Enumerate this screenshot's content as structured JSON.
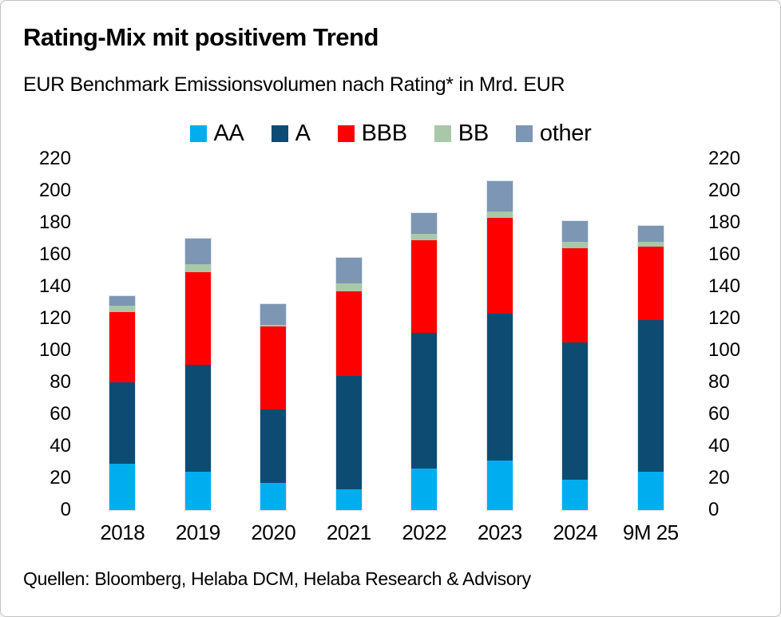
{
  "header": {
    "title": "Rating-Mix mit positivem Trend",
    "subtitle": "EUR Benchmark Emissionsvolumen nach Rating* in Mrd. EUR"
  },
  "footer": {
    "sources": "Quellen: Bloomberg, Helaba DCM, Helaba Research & Advisory"
  },
  "chart_data": {
    "type": "bar",
    "stacked": true,
    "title": "Rating-Mix mit positivem Trend",
    "subtitle": "EUR Benchmark Emissionsvolumen nach Rating* in Mrd. EUR",
    "unit": "Mrd. EUR",
    "categories": [
      "2018",
      "2019",
      "2020",
      "2021",
      "2022",
      "2023",
      "2024",
      "9M 25"
    ],
    "series": [
      {
        "name": "AA",
        "color": "#00AEEF",
        "values": [
          29,
          24,
          17,
          13,
          26,
          31,
          19,
          24
        ]
      },
      {
        "name": "A",
        "color": "#0D4B73",
        "values": [
          51,
          67,
          46,
          71,
          85,
          92,
          86,
          95
        ]
      },
      {
        "name": "BBB",
        "color": "#FE0000",
        "values": [
          44,
          58,
          52,
          53,
          58,
          60,
          59,
          46
        ]
      },
      {
        "name": "BB",
        "color": "#A8C8A8",
        "values": [
          4,
          5,
          1,
          5,
          4,
          4,
          4,
          3
        ]
      },
      {
        "name": "other",
        "color": "#7C96B4",
        "values": [
          6,
          16,
          13,
          16,
          13,
          19,
          13,
          10
        ]
      }
    ],
    "totals": [
      134,
      170,
      129,
      158,
      186,
      206,
      181,
      178
    ],
    "y_axis": {
      "min": 0,
      "max": 220,
      "step": 20,
      "ticks": [
        0,
        20,
        40,
        60,
        80,
        100,
        120,
        140,
        160,
        180,
        200,
        220
      ],
      "sides": [
        "left",
        "right"
      ]
    },
    "legend_position": "top",
    "grid": false
  }
}
